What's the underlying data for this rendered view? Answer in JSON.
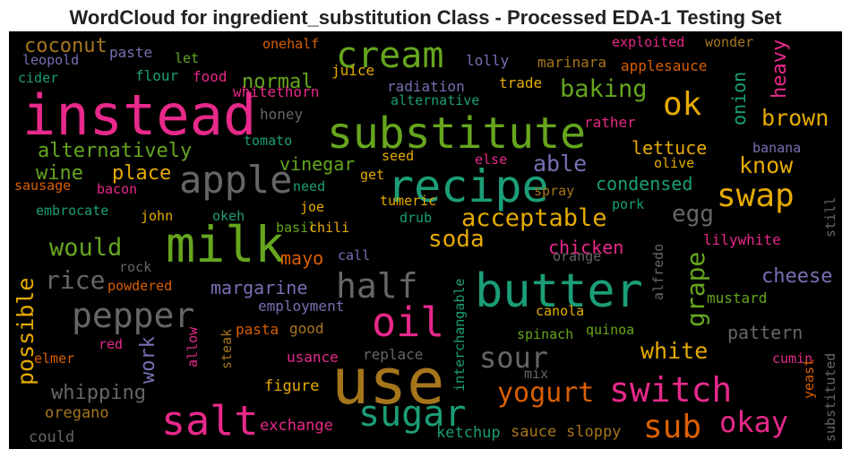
{
  "chart_data": {
    "type": "wordcloud",
    "title": "WordCloud for ingredient_substitution Class - Processed EDA-1 Testing Set",
    "background": "#000000",
    "words": [
      {
        "text": "instead",
        "color": "#e7298a"
      },
      {
        "text": "use",
        "color": "#a6761d"
      },
      {
        "text": "milk",
        "color": "#66a61e"
      },
      {
        "text": "butter",
        "color": "#1b9e77"
      },
      {
        "text": "substitute",
        "color": "#66a61e"
      },
      {
        "text": "recipe",
        "color": "#1b9e77"
      },
      {
        "text": "cream",
        "color": "#66a61e"
      },
      {
        "text": "apple",
        "color": "#666666"
      },
      {
        "text": "salt",
        "color": "#e7298a"
      },
      {
        "text": "oil",
        "color": "#e7298a"
      },
      {
        "text": "sugar",
        "color": "#1b9e77"
      },
      {
        "text": "half",
        "color": "#666666"
      },
      {
        "text": "pepper",
        "color": "#666666"
      },
      {
        "text": "swap",
        "color": "#e6ab02"
      },
      {
        "text": "switch",
        "color": "#e7298a"
      },
      {
        "text": "sub",
        "color": "#d95f02"
      },
      {
        "text": "ok",
        "color": "#e6ab02"
      },
      {
        "text": "okay",
        "color": "#e7298a"
      },
      {
        "text": "sour",
        "color": "#666666"
      },
      {
        "text": "yogurt",
        "color": "#d95f02"
      },
      {
        "text": "acceptable",
        "color": "#e6ab02"
      },
      {
        "text": "baking",
        "color": "#66a61e"
      },
      {
        "text": "brown",
        "color": "#e6ab02"
      },
      {
        "text": "would",
        "color": "#66a61e"
      },
      {
        "text": "rice",
        "color": "#666666"
      },
      {
        "text": "soda",
        "color": "#e6ab02"
      },
      {
        "text": "grape",
        "color": "#66a61e"
      },
      {
        "text": "white",
        "color": "#e6ab02"
      },
      {
        "text": "possible",
        "color": "#e6ab02"
      },
      {
        "text": "work",
        "color": "#7570b3"
      },
      {
        "text": "onion",
        "color": "#1b9e77"
      },
      {
        "text": "heavy",
        "color": "#e7298a"
      },
      {
        "text": "egg",
        "color": "#666666"
      },
      {
        "text": "know",
        "color": "#e6ab02"
      },
      {
        "text": "able",
        "color": "#7570b3"
      },
      {
        "text": "condensed",
        "color": "#1b9e77"
      },
      {
        "text": "lettuce",
        "color": "#e6ab02"
      },
      {
        "text": "alternatively",
        "color": "#66a61e"
      },
      {
        "text": "wine",
        "color": "#66a61e"
      },
      {
        "text": "place",
        "color": "#e6ab02"
      },
      {
        "text": "normal",
        "color": "#66a61e"
      },
      {
        "text": "vinegar",
        "color": "#66a61e"
      },
      {
        "text": "coconut",
        "color": "#a6761d"
      },
      {
        "text": "chicken",
        "color": "#e7298a"
      },
      {
        "text": "cheese",
        "color": "#7570b3"
      },
      {
        "text": "pattern",
        "color": "#666666"
      },
      {
        "text": "mayo",
        "color": "#d95f02"
      },
      {
        "text": "margarine",
        "color": "#7570b3"
      },
      {
        "text": "whipping",
        "color": "#666666"
      },
      {
        "text": "figure",
        "color": "#e6ab02"
      },
      {
        "text": "exchange",
        "color": "#e7298a"
      },
      {
        "text": "ketchup",
        "color": "#1b9e77"
      },
      {
        "text": "sauce",
        "color": "#a6761d"
      },
      {
        "text": "sloppy",
        "color": "#a6761d"
      },
      {
        "text": "could",
        "color": "#666666"
      },
      {
        "text": "oregano",
        "color": "#a6761d"
      },
      {
        "text": "elmer",
        "color": "#d95f02"
      },
      {
        "text": "red",
        "color": "#e7298a"
      },
      {
        "text": "allow",
        "color": "#e7298a"
      },
      {
        "text": "steak",
        "color": "#a6761d"
      },
      {
        "text": "pasta",
        "color": "#d95f02"
      },
      {
        "text": "good",
        "color": "#a6761d"
      },
      {
        "text": "employment",
        "color": "#7570b3"
      },
      {
        "text": "usance",
        "color": "#e7298a"
      },
      {
        "text": "replace",
        "color": "#666666"
      },
      {
        "text": "interchangable",
        "color": "#1b9e77"
      },
      {
        "text": "mix",
        "color": "#666666"
      },
      {
        "text": "spinach",
        "color": "#66a61e"
      },
      {
        "text": "canola",
        "color": "#e6ab02"
      },
      {
        "text": "quinoa",
        "color": "#66a61e"
      },
      {
        "text": "alfredo",
        "color": "#666666"
      },
      {
        "text": "mustard",
        "color": "#66a61e"
      },
      {
        "text": "lilywhite",
        "color": "#e7298a"
      },
      {
        "text": "orange",
        "color": "#666666"
      },
      {
        "text": "cumin",
        "color": "#e7298a"
      },
      {
        "text": "yeast",
        "color": "#d95f02"
      },
      {
        "text": "substituted",
        "color": "#666666"
      },
      {
        "text": "still",
        "color": "#666666"
      },
      {
        "text": "banana",
        "color": "#7570b3"
      },
      {
        "text": "olive",
        "color": "#e6ab02"
      },
      {
        "text": "spray",
        "color": "#a6761d"
      },
      {
        "text": "pork",
        "color": "#1b9e77"
      },
      {
        "text": "drub",
        "color": "#1b9e77"
      },
      {
        "text": "tumeric",
        "color": "#e6ab02"
      },
      {
        "text": "get",
        "color": "#e6ab02"
      },
      {
        "text": "seed",
        "color": "#e6ab02"
      },
      {
        "text": "else",
        "color": "#e7298a"
      },
      {
        "text": "need",
        "color": "#1b9e77"
      },
      {
        "text": "joe",
        "color": "#e6ab02"
      },
      {
        "text": "basil",
        "color": "#66a61e"
      },
      {
        "text": "chili",
        "color": "#e6ab02"
      },
      {
        "text": "call",
        "color": "#7570b3"
      },
      {
        "text": "okeh",
        "color": "#1b9e77"
      },
      {
        "text": "john",
        "color": "#e6ab02"
      },
      {
        "text": "rock",
        "color": "#666666"
      },
      {
        "text": "powdered",
        "color": "#d95f02"
      },
      {
        "text": "embrocate",
        "color": "#1b9e77"
      },
      {
        "text": "sausage",
        "color": "#d95f02"
      },
      {
        "text": "bacon",
        "color": "#e7298a"
      },
      {
        "text": "tomato",
        "color": "#1b9e77"
      },
      {
        "text": "honey",
        "color": "#666666"
      },
      {
        "text": "whitethorn",
        "color": "#e7298a"
      },
      {
        "text": "radiation",
        "color": "#7570b3"
      },
      {
        "text": "alternative",
        "color": "#1b9e77"
      },
      {
        "text": "trade",
        "color": "#e6ab02"
      },
      {
        "text": "juice",
        "color": "#e6ab02"
      },
      {
        "text": "lolly",
        "color": "#7570b3"
      },
      {
        "text": "marinara",
        "color": "#a6761d"
      },
      {
        "text": "applesauce",
        "color": "#d95f02"
      },
      {
        "text": "exploited",
        "color": "#e7298a"
      },
      {
        "text": "wonder",
        "color": "#a6761d"
      },
      {
        "text": "rather",
        "color": "#e7298a"
      },
      {
        "text": "onehalf",
        "color": "#d95f02"
      },
      {
        "text": "paste",
        "color": "#7570b3"
      },
      {
        "text": "leopold",
        "color": "#7570b3"
      },
      {
        "text": "let",
        "color": "#66a61e"
      },
      {
        "text": "cider",
        "color": "#1b9e77"
      },
      {
        "text": "flour",
        "color": "#1b9e77"
      },
      {
        "text": "food",
        "color": "#e7298a"
      }
    ]
  }
}
